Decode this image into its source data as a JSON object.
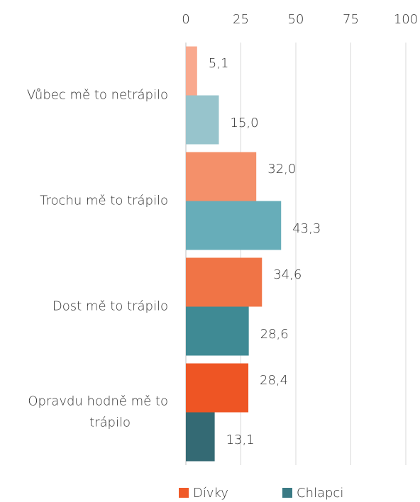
{
  "chart_data": {
    "type": "hbar",
    "categories": [
      "Vůbec mě to netrápilo",
      "Trochu mě to trápilo",
      "Dost mě to trápilo",
      "Opravdu hodně mě to trápilo"
    ],
    "series": [
      {
        "name": "Dívky",
        "color": "#f05a28",
        "colors": [
          "#f9a98e",
          "#f4906a",
          "#f07446",
          "#ee5524"
        ],
        "values": [
          5.1,
          32.0,
          34.6,
          28.4
        ],
        "value_labels": [
          "5,1",
          "32,0",
          "34,6",
          "28,4"
        ]
      },
      {
        "name": "Chlapci",
        "color": "#3a7a84",
        "colors": [
          "#97c4cc",
          "#67adb9",
          "#3f8a94",
          "#346a74"
        ],
        "values": [
          15.0,
          43.3,
          28.6,
          13.1
        ],
        "value_labels": [
          "15,0",
          "43,3",
          "28,6",
          "13,1"
        ]
      }
    ],
    "xlim": [
      0,
      100
    ],
    "xticks": [
      0,
      25,
      50,
      75,
      100
    ],
    "grid": true,
    "legend": "bottom"
  }
}
